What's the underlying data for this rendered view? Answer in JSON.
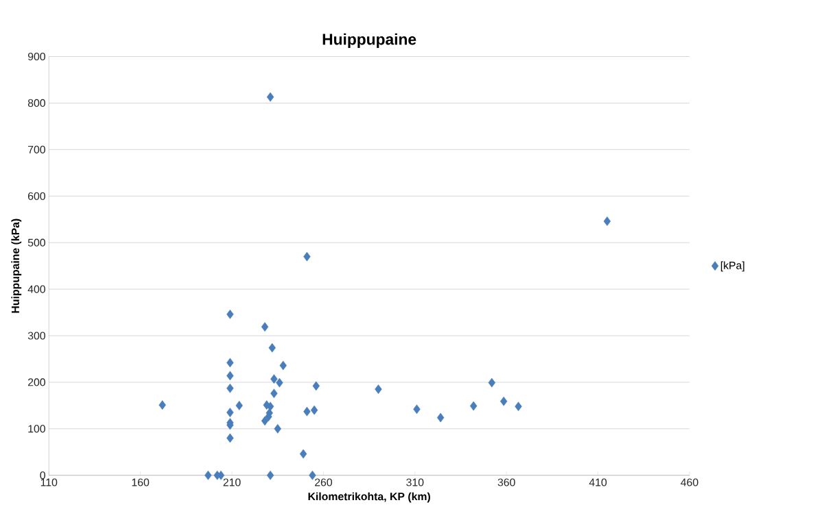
{
  "chart_data": {
    "type": "scatter",
    "title": "Huippupaine",
    "xlabel": "Kilometrikohta, KP (km)",
    "ylabel": "Huippupaine (kPa)",
    "xlim": [
      110,
      460
    ],
    "xticks": [
      110,
      160,
      210,
      260,
      310,
      360,
      410,
      460
    ],
    "ylim": [
      0,
      900
    ],
    "yticks": [
      0,
      100,
      200,
      300,
      400,
      500,
      600,
      700,
      800,
      900
    ],
    "grid": "y",
    "legend": "right",
    "marker": "diamond",
    "series": [
      {
        "name": "[kPa]",
        "color": "#4a7ebb",
        "x": [
          172,
          197,
          202,
          204,
          209,
          209,
          209,
          209,
          209,
          209,
          209,
          209,
          214,
          228,
          231,
          232,
          238,
          233,
          236,
          233,
          229,
          231,
          230.5,
          230,
          228,
          231,
          235,
          251,
          251,
          249,
          255,
          256,
          254,
          290,
          311,
          324,
          342,
          352,
          358.5,
          366.5,
          415
        ],
        "values": [
          151,
          0,
          0,
          0,
          346,
          242,
          214,
          187,
          135,
          113,
          108,
          80,
          150,
          319,
          813,
          274,
          236,
          207,
          199,
          176,
          151,
          148,
          134,
          126,
          117,
          0,
          100,
          470,
          137,
          46,
          140,
          192,
          0,
          185,
          142,
          124,
          149,
          199,
          159,
          148,
          546
        ]
      }
    ]
  }
}
